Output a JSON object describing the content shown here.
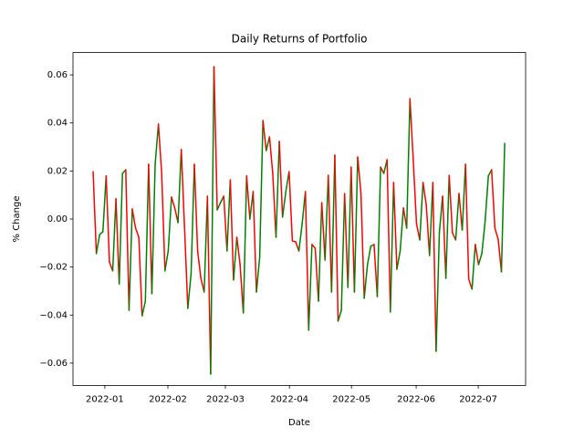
{
  "chart_data": {
    "type": "updown-line",
    "title": "Daily Returns of Portfolio",
    "x_label": "Date",
    "y_label": "% Change",
    "values": [
      0.0197,
      -0.0144,
      -0.0065,
      -0.0053,
      0.0179,
      -0.0179,
      -0.0216,
      0.0084,
      -0.027,
      0.019,
      0.0205,
      -0.038,
      0.0042,
      -0.0038,
      -0.0076,
      -0.0403,
      -0.0342,
      0.0228,
      -0.0311,
      0.0228,
      0.0395,
      0.019,
      -0.0216,
      -0.0133,
      0.0091,
      0.0046,
      -0.0015,
      0.0289,
      -0.0038,
      -0.0372,
      -0.0228,
      0.0228,
      -0.0133,
      -0.0247,
      -0.0304,
      0.0095,
      -0.0646,
      0.0634,
      0.0038,
      0.0068,
      0.0095,
      -0.0133,
      0.0163,
      -0.0254,
      -0.0076,
      -0.019,
      -0.0391,
      0.0179,
      0,
      0.0114,
      -0.0304,
      -0.016,
      0.041,
      0.0285,
      0.0342,
      0.019,
      -0.0076,
      0.0323,
      0.0008,
      0.0114,
      0.0197,
      -0.0091,
      -0.0095,
      -0.0133,
      -0.0019,
      0.0114,
      -0.0463,
      -0.0106,
      -0.0122,
      -0.0342,
      0.0068,
      -0.0171,
      0.0182,
      -0.0304,
      0.0266,
      -0.0425,
      -0.038,
      0.0106,
      -0.0285,
      0.0216,
      -0.0304,
      0.0258,
      0.0106,
      -0.033,
      -0.019,
      -0.0114,
      -0.0106,
      -0.0323,
      0.0216,
      0.019,
      0.0247,
      -0.0387,
      0.0152,
      -0.0209,
      -0.0133,
      0.0046,
      -0.0038,
      0.0501,
      0.0247,
      -0.0019,
      -0.0087,
      0.0152,
      0.0057,
      -0.0152,
      0.0152,
      -0.0551,
      -0.0057,
      0.0095,
      -0.0247,
      0.0182,
      -0.0057,
      -0.0087,
      0.0106,
      -0.0046,
      0.0228,
      -0.0251,
      -0.0292,
      -0.0106,
      -0.019,
      -0.0144,
      -0.0011,
      0.0179,
      0.0205,
      -0.0038,
      -0.0084,
      -0.022,
      0.0315
    ],
    "up_color": "#008000",
    "down_color": "#ff0000",
    "xlim": [
      -6.15,
      132.4
    ],
    "xticks": [
      {
        "value": 3.6,
        "label": "2022-01"
      },
      {
        "value": 22.9,
        "label": "2022-02"
      },
      {
        "value": 40.5,
        "label": "2022-03"
      },
      {
        "value": 60.1,
        "label": "2022-04"
      },
      {
        "value": 79.1,
        "label": "2022-05"
      },
      {
        "value": 98.9,
        "label": "2022-06"
      },
      {
        "value": 117.9,
        "label": "2022-07"
      }
    ],
    "ylim": [
      -0.0693,
      0.0693
    ],
    "yticks": [
      {
        "value": -0.06,
        "label": "−0.06"
      },
      {
        "value": -0.04,
        "label": "−0.04"
      },
      {
        "value": -0.02,
        "label": "−0.02"
      },
      {
        "value": 0,
        "label": "0.00"
      },
      {
        "value": 0.02,
        "label": "0.02"
      },
      {
        "value": 0.04,
        "label": "0.04"
      },
      {
        "value": 0.06,
        "label": "0.06"
      }
    ],
    "grid": false
  }
}
